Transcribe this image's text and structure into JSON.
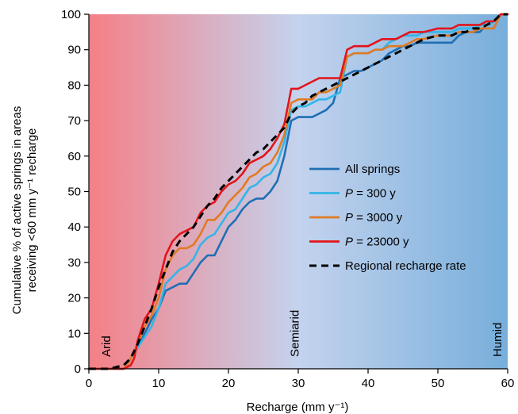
{
  "chart_data": {
    "type": "line",
    "xlabel": "Recharge (mm y⁻¹)",
    "ylabel_line1": "Cumulative % of active springs in areas",
    "ylabel_line2": "receiving <60 mm y⁻¹ recharge",
    "xlim": [
      0,
      60
    ],
    "ylim": [
      0,
      100
    ],
    "xticks": [
      0,
      10,
      20,
      30,
      40,
      50,
      60
    ],
    "yticks": [
      0,
      10,
      20,
      30,
      40,
      50,
      60,
      70,
      80,
      90,
      100
    ],
    "grid": false,
    "legend_position": "center-right",
    "background_gradient": [
      "#f57f86",
      "#c4d3ee",
      "#77aedb"
    ],
    "zone_labels": [
      {
        "text": "Arid",
        "x": 2.5
      },
      {
        "text": "Semiarid",
        "x": 29.5
      },
      {
        "text": "Humid",
        "x": 58.5
      }
    ],
    "series": [
      {
        "name": "All springs",
        "color": "#1f6fb5",
        "dashed": false,
        "points": [
          [
            0,
            0
          ],
          [
            5,
            0
          ],
          [
            5.5,
            1
          ],
          [
            6,
            3
          ],
          [
            7,
            6
          ],
          [
            8,
            10
          ],
          [
            9,
            14
          ],
          [
            10,
            17
          ],
          [
            11,
            22
          ],
          [
            12,
            23
          ],
          [
            13,
            24
          ],
          [
            14,
            24
          ],
          [
            15,
            27
          ],
          [
            16,
            30
          ],
          [
            17,
            32
          ],
          [
            18,
            32
          ],
          [
            19,
            36
          ],
          [
            20,
            40
          ],
          [
            21,
            42
          ],
          [
            22,
            45
          ],
          [
            23,
            47
          ],
          [
            24,
            48
          ],
          [
            25,
            48
          ],
          [
            26,
            50
          ],
          [
            27,
            53
          ],
          [
            28,
            60
          ],
          [
            29,
            70
          ],
          [
            30,
            71
          ],
          [
            31,
            71
          ],
          [
            32,
            71
          ],
          [
            33,
            72
          ],
          [
            34,
            73
          ],
          [
            35,
            75
          ],
          [
            36,
            82
          ],
          [
            37,
            83
          ],
          [
            38,
            84
          ],
          [
            39,
            84
          ],
          [
            40,
            85
          ],
          [
            41,
            86
          ],
          [
            42,
            87
          ],
          [
            43,
            89
          ],
          [
            44,
            90
          ],
          [
            45,
            91
          ],
          [
            46,
            91
          ],
          [
            47,
            92
          ],
          [
            48,
            92
          ],
          [
            50,
            92
          ],
          [
            52,
            92
          ],
          [
            53,
            94
          ],
          [
            54,
            95
          ],
          [
            55,
            95
          ],
          [
            56,
            95
          ],
          [
            57,
            97
          ],
          [
            58,
            98
          ],
          [
            59,
            100
          ],
          [
            60,
            100
          ]
        ]
      },
      {
        "name": "P = 300 y",
        "color": "#33b5e8",
        "dashed": false,
        "points": [
          [
            0,
            0
          ],
          [
            5,
            0
          ],
          [
            5.5,
            1
          ],
          [
            6,
            3
          ],
          [
            7,
            6
          ],
          [
            8,
            9
          ],
          [
            9,
            12
          ],
          [
            10,
            17
          ],
          [
            11,
            24
          ],
          [
            12,
            26
          ],
          [
            13,
            28
          ],
          [
            14,
            29
          ],
          [
            15,
            31
          ],
          [
            16,
            35
          ],
          [
            17,
            37
          ],
          [
            18,
            38
          ],
          [
            19,
            41
          ],
          [
            20,
            44
          ],
          [
            21,
            45
          ],
          [
            22,
            48
          ],
          [
            23,
            51
          ],
          [
            24,
            52
          ],
          [
            25,
            54
          ],
          [
            26,
            55
          ],
          [
            27,
            58
          ],
          [
            28,
            64
          ],
          [
            29,
            73
          ],
          [
            30,
            74
          ],
          [
            31,
            74
          ],
          [
            32,
            75
          ],
          [
            33,
            76
          ],
          [
            34,
            76
          ],
          [
            35,
            77
          ],
          [
            36,
            78
          ],
          [
            37,
            88
          ],
          [
            38,
            89
          ],
          [
            39,
            89
          ],
          [
            40,
            89
          ],
          [
            41,
            90
          ],
          [
            42,
            90
          ],
          [
            43,
            92
          ],
          [
            44,
            93
          ],
          [
            45,
            94
          ],
          [
            46,
            94
          ],
          [
            47,
            94
          ],
          [
            48,
            95
          ],
          [
            50,
            95
          ],
          [
            52,
            95
          ],
          [
            53,
            96
          ],
          [
            54,
            96
          ],
          [
            55,
            96
          ],
          [
            56,
            97
          ],
          [
            57,
            97
          ],
          [
            58,
            98
          ],
          [
            59,
            100
          ],
          [
            60,
            100
          ]
        ]
      },
      {
        "name": "P = 3000 y",
        "color": "#e07b24",
        "dashed": false,
        "points": [
          [
            0,
            0
          ],
          [
            5,
            0
          ],
          [
            5.5,
            1
          ],
          [
            6,
            3
          ],
          [
            7,
            7
          ],
          [
            8,
            12
          ],
          [
            9,
            15
          ],
          [
            10,
            20
          ],
          [
            11,
            28
          ],
          [
            12,
            32
          ],
          [
            13,
            34
          ],
          [
            14,
            34
          ],
          [
            15,
            35
          ],
          [
            16,
            38
          ],
          [
            17,
            42
          ],
          [
            18,
            42
          ],
          [
            19,
            44
          ],
          [
            20,
            47
          ],
          [
            21,
            49
          ],
          [
            22,
            51
          ],
          [
            23,
            54
          ],
          [
            24,
            55
          ],
          [
            25,
            57
          ],
          [
            26,
            58
          ],
          [
            27,
            61
          ],
          [
            28,
            66
          ],
          [
            29,
            75
          ],
          [
            30,
            76
          ],
          [
            31,
            76
          ],
          [
            32,
            76
          ],
          [
            33,
            78
          ],
          [
            34,
            78
          ],
          [
            35,
            79
          ],
          [
            36,
            80
          ],
          [
            37,
            88
          ],
          [
            38,
            89
          ],
          [
            39,
            89
          ],
          [
            40,
            89
          ],
          [
            41,
            90
          ],
          [
            42,
            90
          ],
          [
            43,
            91
          ],
          [
            44,
            91
          ],
          [
            45,
            91
          ],
          [
            46,
            92
          ],
          [
            47,
            93
          ],
          [
            48,
            93
          ],
          [
            50,
            94
          ],
          [
            52,
            94
          ],
          [
            53,
            95
          ],
          [
            54,
            95
          ],
          [
            55,
            95
          ],
          [
            56,
            96
          ],
          [
            57,
            96
          ],
          [
            58,
            96
          ],
          [
            59,
            100
          ],
          [
            60,
            100
          ]
        ]
      },
      {
        "name": "P = 23000 y",
        "color": "#e3141b",
        "dashed": false,
        "points": [
          [
            0,
            0
          ],
          [
            5,
            0
          ],
          [
            6,
            1
          ],
          [
            6.5,
            3
          ],
          [
            7,
            8
          ],
          [
            8,
            14
          ],
          [
            9,
            17
          ],
          [
            10,
            24
          ],
          [
            11,
            32
          ],
          [
            12,
            36
          ],
          [
            13,
            38
          ],
          [
            14,
            39
          ],
          [
            15,
            40
          ],
          [
            16,
            44
          ],
          [
            17,
            46
          ],
          [
            18,
            47
          ],
          [
            19,
            50
          ],
          [
            20,
            52
          ],
          [
            21,
            53
          ],
          [
            22,
            55
          ],
          [
            23,
            58
          ],
          [
            24,
            59
          ],
          [
            25,
            60
          ],
          [
            26,
            62
          ],
          [
            27,
            65
          ],
          [
            28,
            69
          ],
          [
            29,
            79
          ],
          [
            30,
            79
          ],
          [
            31,
            80
          ],
          [
            32,
            81
          ],
          [
            33,
            82
          ],
          [
            34,
            82
          ],
          [
            35,
            82
          ],
          [
            36,
            82
          ],
          [
            37,
            90
          ],
          [
            38,
            91
          ],
          [
            39,
            91
          ],
          [
            40,
            91
          ],
          [
            41,
            92
          ],
          [
            42,
            93
          ],
          [
            43,
            93
          ],
          [
            44,
            93
          ],
          [
            45,
            94
          ],
          [
            46,
            95
          ],
          [
            47,
            95
          ],
          [
            48,
            95
          ],
          [
            50,
            96
          ],
          [
            52,
            96
          ],
          [
            53,
            97
          ],
          [
            54,
            97
          ],
          [
            55,
            97
          ],
          [
            56,
            97
          ],
          [
            57,
            98
          ],
          [
            58,
            98
          ],
          [
            59,
            100
          ],
          [
            60,
            100
          ]
        ]
      },
      {
        "name": "Regional recharge rate",
        "color": "#000000",
        "dashed": true,
        "points": [
          [
            0,
            0
          ],
          [
            3,
            0
          ],
          [
            5,
            1
          ],
          [
            6,
            3
          ],
          [
            7,
            7
          ],
          [
            8,
            12
          ],
          [
            9,
            17
          ],
          [
            10,
            23
          ],
          [
            11,
            28
          ],
          [
            12,
            33
          ],
          [
            13,
            36
          ],
          [
            14,
            38
          ],
          [
            15,
            40
          ],
          [
            16,
            43
          ],
          [
            17,
            46
          ],
          [
            18,
            48
          ],
          [
            19,
            51
          ],
          [
            20,
            53
          ],
          [
            21,
            55
          ],
          [
            22,
            57
          ],
          [
            23,
            59
          ],
          [
            24,
            61
          ],
          [
            25,
            62
          ],
          [
            26,
            64
          ],
          [
            27,
            66
          ],
          [
            28,
            68
          ],
          [
            29,
            72
          ],
          [
            30,
            74
          ],
          [
            31,
            75
          ],
          [
            32,
            77
          ],
          [
            33,
            78
          ],
          [
            34,
            79
          ],
          [
            35,
            80
          ],
          [
            36,
            81
          ],
          [
            37,
            82
          ],
          [
            38,
            83
          ],
          [
            39,
            84
          ],
          [
            40,
            85
          ],
          [
            41,
            86
          ],
          [
            42,
            87
          ],
          [
            43,
            88
          ],
          [
            44,
            89
          ],
          [
            45,
            90
          ],
          [
            46,
            91
          ],
          [
            47,
            92
          ],
          [
            48,
            93
          ],
          [
            50,
            94
          ],
          [
            52,
            94
          ],
          [
            53,
            95
          ],
          [
            54,
            95
          ],
          [
            55,
            96
          ],
          [
            56,
            96
          ],
          [
            57,
            97
          ],
          [
            58,
            98
          ],
          [
            59,
            100
          ],
          [
            60,
            100
          ]
        ]
      }
    ]
  }
}
